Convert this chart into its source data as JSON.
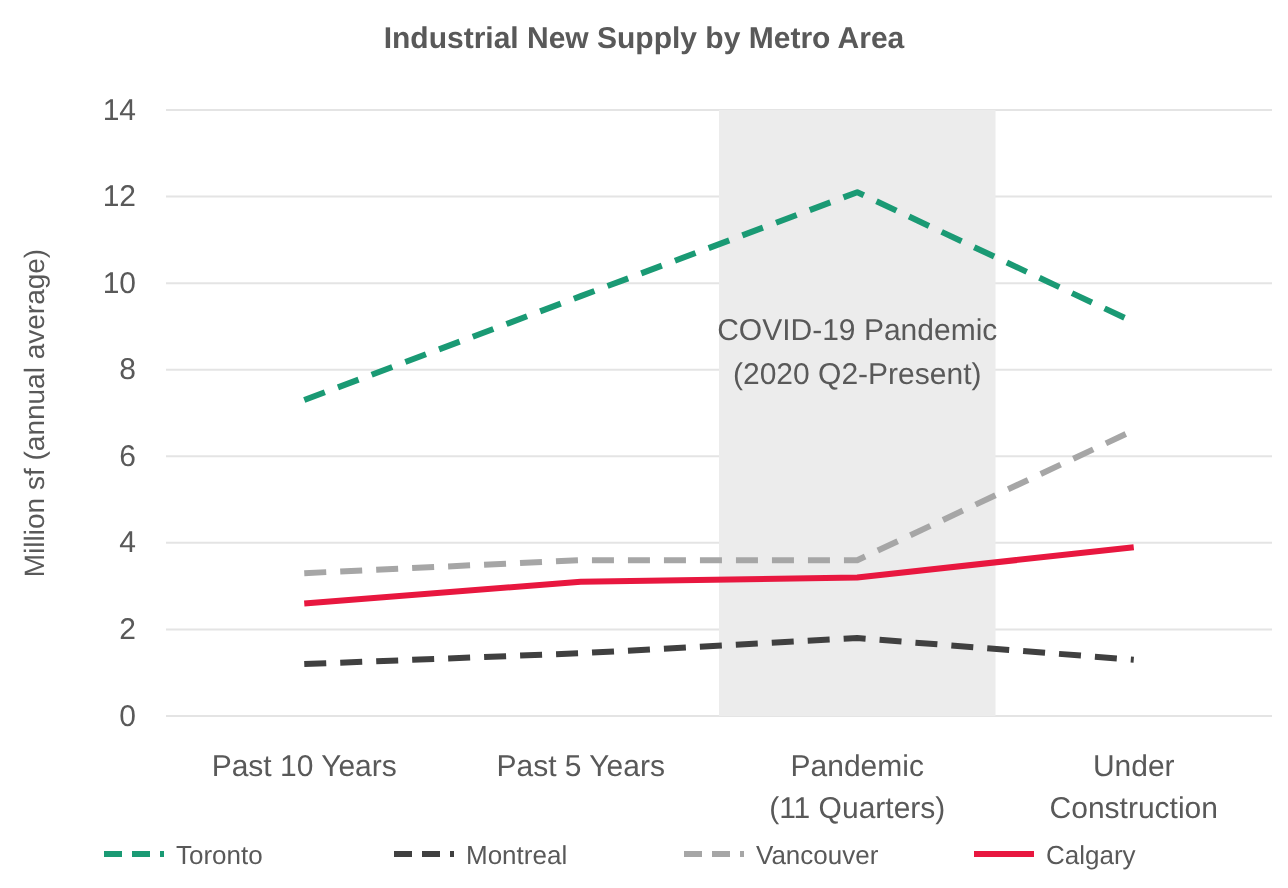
{
  "chart_data": {
    "type": "line",
    "title": "Industrial New Supply by Metro Area",
    "ylabel": "Million sf (annual average)",
    "categories": [
      "Past 10 Years",
      "Past 5 Years",
      "Pandemic\n(11 Quarters)",
      "Under\nConstruction"
    ],
    "series": [
      {
        "name": "Toronto",
        "color": "#1a9a74",
        "line_style": "dashed",
        "values": [
          7.3,
          9.7,
          12.1,
          9.1
        ]
      },
      {
        "name": "Montreal",
        "color": "#404040",
        "line_style": "dashed",
        "values": [
          1.2,
          1.45,
          1.8,
          1.3
        ]
      },
      {
        "name": "Vancouver",
        "color": "#a6a6a6",
        "line_style": "dashed",
        "values": [
          3.3,
          3.6,
          3.6,
          6.6
        ]
      },
      {
        "name": "Calgary",
        "color": "#e8173f",
        "line_style": "solid",
        "values": [
          2.6,
          3.1,
          3.2,
          3.9
        ]
      }
    ],
    "ylim": [
      0,
      14
    ],
    "yticks": [
      0,
      2,
      4,
      6,
      8,
      10,
      12,
      14
    ],
    "grid": "y",
    "legend": "bottom",
    "bands": [
      {
        "axis": "x",
        "from": "Pandemic\n(11 Quarters)",
        "to": "Pandemic\n(11 Quarters)",
        "label": "COVID-19 Pandemic\n(2020 Q2-Present)",
        "color": "#ececec"
      }
    ]
  }
}
